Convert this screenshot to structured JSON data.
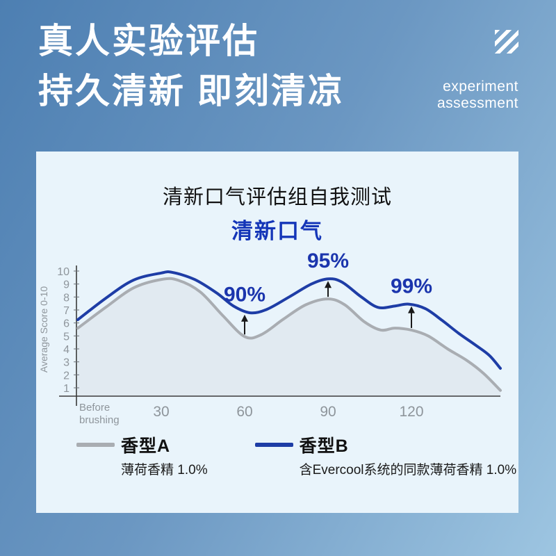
{
  "header": {
    "title_line1": "真人实验评估",
    "title_line2": "持久清新 即刻清凉",
    "tagline_line1": "experiment",
    "tagline_line2": "assessment",
    "stripes_icon": "diagonal-stripes-icon",
    "text_color": "#ffffff"
  },
  "background": {
    "gradient_start": "#4d7fb2",
    "gradient_end": "#9dc5e1",
    "card_color": "#e9f4fb"
  },
  "chart_data": {
    "type": "line",
    "title": "清新口气评估组自我测试",
    "subtitle": "清新口气",
    "subtitle_color": "#1536b8",
    "ylabel": "Average Score 0-10",
    "ylim": [
      0,
      10
    ],
    "y_ticks": [
      1,
      2,
      3,
      4,
      5,
      6,
      7,
      8,
      9,
      10
    ],
    "x_max": 152,
    "x_ticks": [
      {
        "t": 0,
        "label": "Before\nbrushing"
      },
      {
        "t": 30,
        "label": "30"
      },
      {
        "t": 60,
        "label": "60"
      },
      {
        "t": 90,
        "label": "90"
      },
      {
        "t": 120,
        "label": "120"
      }
    ],
    "axis_color": "#3a3a3a",
    "tick_text_color": "#8e959b",
    "grid": false,
    "series": [
      {
        "name": "香型A",
        "desc": "薄荷香精 1.0%",
        "color": "#a9adb2",
        "fill": "#e1eaf1",
        "points": [
          [
            0,
            5.6
          ],
          [
            10,
            7.2
          ],
          [
            20,
            8.7
          ],
          [
            30,
            9.35
          ],
          [
            36,
            9.3
          ],
          [
            44,
            8.4
          ],
          [
            52,
            6.6
          ],
          [
            60,
            4.95
          ],
          [
            66,
            5.1
          ],
          [
            74,
            6.3
          ],
          [
            82,
            7.4
          ],
          [
            90,
            7.85
          ],
          [
            96,
            7.4
          ],
          [
            103,
            6.1
          ],
          [
            109,
            5.45
          ],
          [
            114,
            5.6
          ],
          [
            120,
            5.45
          ],
          [
            126,
            5.0
          ],
          [
            133,
            4.0
          ],
          [
            140,
            3.1
          ],
          [
            146,
            2.1
          ],
          [
            152,
            0.8
          ]
        ]
      },
      {
        "name": "香型B",
        "desc": "含Evercool系统的同款薄荷香精 1.0%",
        "color": "#1e3da6",
        "fill": null,
        "points": [
          [
            0,
            6.25
          ],
          [
            10,
            7.9
          ],
          [
            20,
            9.3
          ],
          [
            30,
            9.85
          ],
          [
            34,
            9.9
          ],
          [
            42,
            9.35
          ],
          [
            50,
            8.3
          ],
          [
            56,
            7.3
          ],
          [
            62,
            6.78
          ],
          [
            68,
            7.05
          ],
          [
            76,
            8.0
          ],
          [
            84,
            9.0
          ],
          [
            90,
            9.4
          ],
          [
            95,
            9.15
          ],
          [
            102,
            8.0
          ],
          [
            108,
            7.2
          ],
          [
            114,
            7.3
          ],
          [
            119,
            7.45
          ],
          [
            125,
            7.1
          ],
          [
            131,
            6.2
          ],
          [
            137,
            5.2
          ],
          [
            143,
            4.3
          ],
          [
            148,
            3.5
          ],
          [
            152,
            2.5
          ]
        ]
      }
    ],
    "annotations": [
      {
        "t": 60,
        "label": "90%",
        "from_value": 4.95,
        "to_value": 6.8
      },
      {
        "t": 90,
        "label": "95%",
        "from_value": 7.85,
        "to_value": 9.4
      },
      {
        "t": 120,
        "label": "99%",
        "from_value": 5.45,
        "to_value": 7.45
      }
    ],
    "annotation_color": "#1b35ad",
    "arrow_color": "#1a1a1a",
    "legend": [
      {
        "name": "香型A",
        "desc": "薄荷香精 1.0%",
        "color": "#a9adb2"
      },
      {
        "name": "香型B",
        "desc": "含Evercool系统的同款薄荷香精 1.0%",
        "color": "#1e3da6"
      }
    ],
    "legend_position": "bottom"
  }
}
